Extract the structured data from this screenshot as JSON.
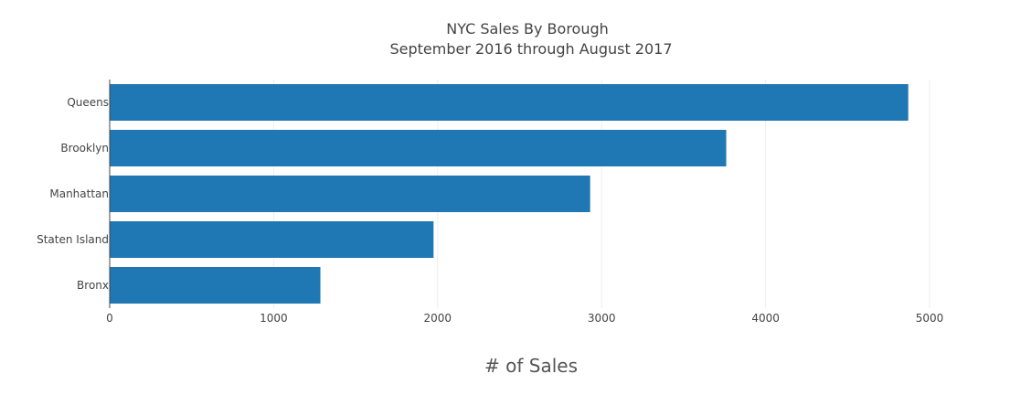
{
  "chart_data": {
    "type": "bar",
    "orientation": "horizontal",
    "title": "NYC Sales By Borough",
    "subtitle": "September 2016 through August 2017",
    "xlabel": "# of Sales",
    "ylabel": "",
    "categories": [
      "Queens",
      "Brooklyn",
      "Manhattan",
      "Staten Island",
      "Bronx"
    ],
    "values": [
      4870,
      3760,
      2930,
      1975,
      1285
    ],
    "xlim": [
      0,
      5000
    ],
    "x_ticks": [
      0,
      1000,
      2000,
      3000,
      4000,
      5000
    ],
    "grid": true,
    "legend": "none",
    "bar_color": "#1f77b4"
  }
}
